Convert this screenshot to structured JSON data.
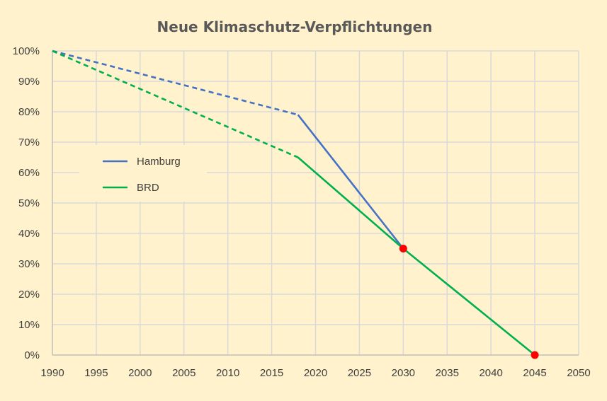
{
  "chart_data": {
    "type": "line",
    "title": "Neue Klimaschutz-Verpflichtungen",
    "xlabel": "",
    "ylabel": "",
    "xlim": [
      1990,
      2050
    ],
    "ylim": [
      0,
      100
    ],
    "x_ticks": [
      "1990",
      "1995",
      "2000",
      "2005",
      "2010",
      "2015",
      "2020",
      "2025",
      "2030",
      "2035",
      "2040",
      "2045",
      "2050"
    ],
    "y_ticks": [
      "0%",
      "10%",
      "20%",
      "30%",
      "40%",
      "50%",
      "60%",
      "70%",
      "80%",
      "90%",
      "100%"
    ],
    "grid": true,
    "legend_position": "left",
    "series": [
      {
        "name": "Hamburg",
        "color": "#4472c4",
        "segments": [
          {
            "style": "dashed",
            "points": [
              [
                1990,
                100
              ],
              [
                2018,
                79
              ]
            ]
          },
          {
            "style": "solid",
            "points": [
              [
                2018,
                79
              ],
              [
                2030,
                35
              ]
            ]
          }
        ]
      },
      {
        "name": "BRD",
        "color": "#00b050",
        "segments": [
          {
            "style": "dashed",
            "points": [
              [
                1990,
                100
              ],
              [
                2018,
                65
              ]
            ]
          },
          {
            "style": "solid",
            "points": [
              [
                2018,
                65
              ],
              [
                2030,
                35
              ],
              [
                2045,
                0
              ]
            ]
          }
        ]
      }
    ],
    "markers": [
      {
        "x": 2030,
        "y": 35,
        "color": "#ff0000"
      },
      {
        "x": 2045,
        "y": 0,
        "color": "#ff0000"
      }
    ]
  }
}
